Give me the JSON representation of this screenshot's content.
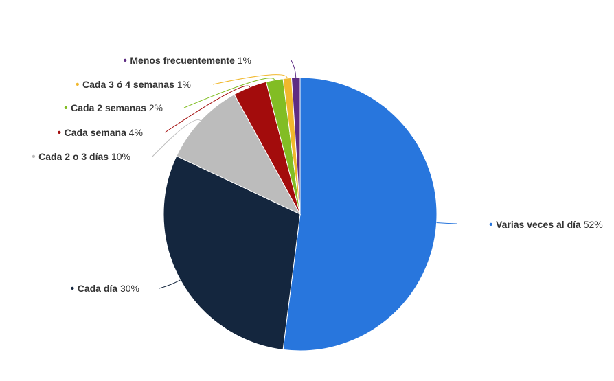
{
  "chart_data": {
    "type": "pie",
    "title": "",
    "start_angle_deg": 0,
    "direction": "clockwise",
    "slices": [
      {
        "label": "Varias veces al día",
        "value": 52,
        "value_label": "52%",
        "color": "#2876dd"
      },
      {
        "label": "Cada día",
        "value": 30,
        "value_label": "30%",
        "color": "#14263e"
      },
      {
        "label": "Cada 2 o 3 días",
        "value": 10,
        "value_label": "10%",
        "color": "#bcbcbc"
      },
      {
        "label": "Cada semana",
        "value": 4,
        "value_label": "4%",
        "color": "#a30c0c"
      },
      {
        "label": "Cada 2 semanas",
        "value": 2,
        "value_label": "2%",
        "color": "#82bd24"
      },
      {
        "label": "Cada 3 ó 4 semanas",
        "value": 1,
        "value_label": "1%",
        "color": "#f1b82d"
      },
      {
        "label": "Menos frecuentemente",
        "value": 1,
        "value_label": "1%",
        "color": "#5e2d83"
      }
    ]
  }
}
